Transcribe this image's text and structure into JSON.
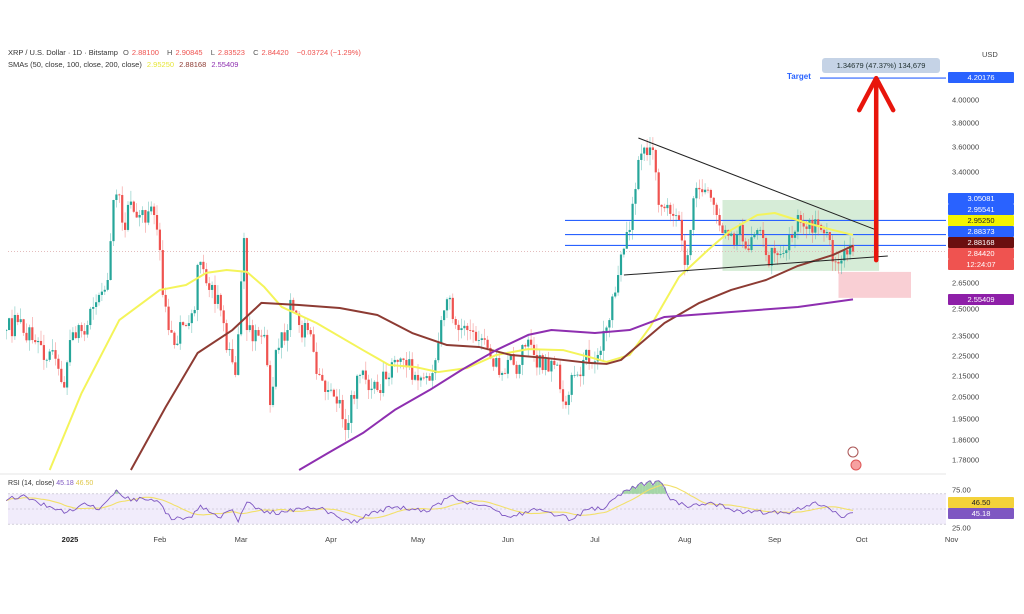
{
  "header": {
    "symbol_line": "XRP / U.S. Dollar · 1D · Bitstamp",
    "o_key": "O",
    "o": "2.88100",
    "h_key": "H",
    "h": "2.90845",
    "l_key": "L",
    "l": "2.83523",
    "c_key": "C",
    "c": "2.84420",
    "change": "−0.03724 (−1.29%)",
    "sma_label": "SMAs (50, close, 100, close, 200, close)",
    "sma50": "2.95250",
    "sma100": "2.88168",
    "sma200": "2.55409"
  },
  "rsi_header": {
    "label": "RSI (14, close)",
    "value": "45.18",
    "ma_value": "46.50"
  },
  "price_axis": {
    "currency": "USD",
    "ticks": [
      {
        "value": 4.0,
        "label": "4.00000"
      },
      {
        "value": 3.8,
        "label": "3.80000"
      },
      {
        "value": 3.6,
        "label": "3.60000"
      },
      {
        "value": 3.4,
        "label": "3.40000"
      },
      {
        "value": 2.65,
        "label": "2.65000"
      },
      {
        "value": 2.5,
        "label": "2.50000"
      },
      {
        "value": 2.35,
        "label": "2.35000"
      },
      {
        "value": 2.25,
        "label": "2.25000"
      },
      {
        "value": 2.15,
        "label": "2.15000"
      },
      {
        "value": 2.05,
        "label": "2.05000"
      },
      {
        "value": 1.95,
        "label": "1.95000"
      },
      {
        "value": 1.86,
        "label": "1.86000"
      },
      {
        "value": 1.78,
        "label": "1.78000"
      }
    ],
    "scale": "log",
    "badges": {
      "target": "4.20176",
      "level1": "3.05081",
      "level2": "2.95541",
      "sma50": "2.95250",
      "level3": "2.88373",
      "sma100": "2.88168",
      "last": "2.84420",
      "countdown": "12:24:07",
      "sma200": "2.55409"
    }
  },
  "rsi_axis": {
    "ticks": [
      {
        "value": 75,
        "label": "75.00"
      },
      {
        "value": 25,
        "label": "25.00"
      }
    ],
    "badges": {
      "ma": "46.50",
      "rsi": "45.18"
    }
  },
  "time_axis": [
    {
      "date": "2025-01-01",
      "label": "2025"
    },
    {
      "date": "2025-02-01",
      "label": "Feb"
    },
    {
      "date": "2025-03-01",
      "label": "Mar"
    },
    {
      "date": "2025-04-01",
      "label": "Apr"
    },
    {
      "date": "2025-05-01",
      "label": "May"
    },
    {
      "date": "2025-06-01",
      "label": "Jun"
    },
    {
      "date": "2025-07-01",
      "label": "Jul"
    },
    {
      "date": "2025-08-01",
      "label": "Aug"
    },
    {
      "date": "2025-09-01",
      "label": "Sep"
    },
    {
      "date": "2025-10-01",
      "label": "Oct"
    },
    {
      "date": "2025-11-01",
      "label": "Nov"
    }
  ],
  "drawings": {
    "target_label": "Target",
    "target_price": 4.20176,
    "measure_text": "1.34679 (47.37%) 134,679",
    "horizontal_levels": [
      3.05081,
      2.95541,
      2.88373
    ],
    "triangle_upper": [
      [
        "2025-07-16",
        3.672
      ],
      [
        "2025-10-06",
        2.986
      ]
    ],
    "triangle_lower": [
      [
        "2025-07-11",
        2.698
      ],
      [
        "2025-10-10",
        2.816
      ]
    ],
    "green_zone": {
      "from": "2025-08-14",
      "to": "2025-10-07",
      "top": 3.194,
      "bottom": 2.723
    },
    "red_zone": {
      "from": "2025-09-23",
      "to": "2025-10-18",
      "top": 2.717,
      "bottom": 2.563
    },
    "arrow": {
      "date": "2025-10-06",
      "from": 2.79,
      "to": 4.22
    }
  },
  "colors": {
    "up": "#26a69a",
    "down": "#ef5350",
    "sma50": "#f4f45a",
    "sma100": "#8d3b33",
    "sma200": "#8e2fb0",
    "level": "#2962ff",
    "arrow": "#e8150c",
    "rsi": "#7e57c2",
    "rsi_ma": "#f2e06a",
    "green_zone": "#c8e6c9",
    "red_zone": "#f8c7cc"
  },
  "chart_data": {
    "type": "candlestick",
    "title": "XRP / U.S. Dollar · 1D · Bitstamp",
    "y_scale": "log",
    "ylim": [
      1.74,
      4.4
    ],
    "xlim": [
      "2024-12-10",
      "2025-11-10"
    ],
    "price_path": [
      [
        "2024-12-10",
        2.384
      ],
      [
        "2024-12-14",
        2.427
      ],
      [
        "2024-12-19",
        2.331
      ],
      [
        "2024-12-23",
        2.229
      ],
      [
        "2024-12-26",
        2.279
      ],
      [
        "2024-12-30",
        2.095
      ],
      [
        "2025-01-01",
        2.331
      ],
      [
        "2025-01-04",
        2.411
      ],
      [
        "2025-01-07",
        2.411
      ],
      [
        "2025-01-11",
        2.58
      ],
      [
        "2025-01-14",
        2.668
      ],
      [
        "2025-01-16",
        3.194
      ],
      [
        "2025-01-18",
        3.23
      ],
      [
        "2025-01-20",
        2.986
      ],
      [
        "2025-01-21",
        3.159
      ],
      [
        "2025-01-25",
        3.088
      ],
      [
        "2025-01-30",
        3.088
      ],
      [
        "2025-02-01",
        2.854
      ],
      [
        "2025-02-02",
        2.58
      ],
      [
        "2025-02-04",
        2.384
      ],
      [
        "2025-02-06",
        2.305
      ],
      [
        "2025-02-09",
        2.411
      ],
      [
        "2025-02-13",
        2.494
      ],
      [
        "2025-02-14",
        2.76
      ],
      [
        "2025-02-18",
        2.609
      ],
      [
        "2025-02-21",
        2.58
      ],
      [
        "2025-02-24",
        2.279
      ],
      [
        "2025-02-27",
        2.155
      ],
      [
        "2025-03-02",
        2.932
      ],
      [
        "2025-03-03",
        2.384
      ],
      [
        "2025-03-06",
        2.384
      ],
      [
        "2025-03-09",
        2.358
      ],
      [
        "2025-03-11",
        2.014
      ],
      [
        "2025-03-13",
        2.279
      ],
      [
        "2025-03-17",
        2.384
      ],
      [
        "2025-03-18",
        2.551
      ],
      [
        "2025-03-21",
        2.411
      ],
      [
        "2025-03-24",
        2.384
      ],
      [
        "2025-03-28",
        2.155
      ],
      [
        "2025-03-31",
        2.083
      ],
      [
        "2025-04-04",
        2.037
      ],
      [
        "2025-04-06",
        1.904
      ],
      [
        "2025-04-08",
        2.06
      ],
      [
        "2025-04-11",
        2.155
      ],
      [
        "2025-04-14",
        2.083
      ],
      [
        "2025-04-17",
        2.083
      ],
      [
        "2025-04-23",
        2.229
      ],
      [
        "2025-04-26",
        2.229
      ],
      [
        "2025-04-30",
        2.155
      ],
      [
        "2025-05-03",
        2.14
      ],
      [
        "2025-05-06",
        2.164
      ],
      [
        "2025-05-09",
        2.438
      ],
      [
        "2025-05-12",
        2.563
      ],
      [
        "2025-05-15",
        2.384
      ],
      [
        "2025-05-18",
        2.384
      ],
      [
        "2025-05-22",
        2.331
      ],
      [
        "2025-05-25",
        2.29
      ],
      [
        "2025-05-29",
        2.155
      ],
      [
        "2025-06-01",
        2.229
      ],
      [
        "2025-06-05",
        2.204
      ],
      [
        "2025-06-06",
        2.305
      ],
      [
        "2025-06-10",
        2.254
      ],
      [
        "2025-06-13",
        2.179
      ],
      [
        "2025-06-17",
        2.204
      ],
      [
        "2025-06-21",
        2.014
      ],
      [
        "2025-06-24",
        2.155
      ],
      [
        "2025-06-27",
        2.229
      ],
      [
        "2025-07-02",
        2.254
      ],
      [
        "2025-07-06",
        2.438
      ],
      [
        "2025-07-09",
        2.698
      ],
      [
        "2025-07-13",
        2.986
      ],
      [
        "2025-07-16",
        3.495
      ],
      [
        "2025-07-19",
        3.534
      ],
      [
        "2025-07-21",
        3.574
      ],
      [
        "2025-07-23",
        3.159
      ],
      [
        "2025-07-26",
        3.159
      ],
      [
        "2025-07-30",
        3.054
      ],
      [
        "2025-08-01",
        2.76
      ],
      [
        "2025-08-03",
        2.986
      ],
      [
        "2025-08-05",
        3.282
      ],
      [
        "2025-08-09",
        3.267
      ],
      [
        "2025-08-12",
        3.088
      ],
      [
        "2025-08-15",
        2.986
      ],
      [
        "2025-08-18",
        2.887
      ],
      [
        "2025-08-20",
        3.02
      ],
      [
        "2025-08-23",
        2.854
      ],
      [
        "2025-08-27",
        2.986
      ],
      [
        "2025-08-29",
        2.822
      ],
      [
        "2025-09-02",
        2.822
      ],
      [
        "2025-09-06",
        2.952
      ],
      [
        "2025-09-09",
        3.088
      ],
      [
        "2025-09-13",
        3.054
      ],
      [
        "2025-09-16",
        3.02
      ],
      [
        "2025-09-20",
        2.919
      ],
      [
        "2025-09-22",
        2.778
      ],
      [
        "2025-09-25",
        2.854
      ],
      [
        "2025-09-27",
        2.887
      ],
      [
        "2025-09-28",
        2.8442
      ]
    ],
    "series": [
      {
        "name": "SMA 50",
        "points": [
          [
            "2024-12-25",
            1.74
          ],
          [
            "2025-01-05",
            2.069
          ],
          [
            "2025-01-18",
            2.438
          ],
          [
            "2025-02-01",
            2.609
          ],
          [
            "2025-02-10",
            2.638
          ],
          [
            "2025-02-17",
            2.711
          ],
          [
            "2025-02-24",
            2.729
          ],
          [
            "2025-03-03",
            2.717
          ],
          [
            "2025-03-09",
            2.626
          ],
          [
            "2025-03-15",
            2.511
          ],
          [
            "2025-03-27",
            2.422
          ],
          [
            "2025-04-12",
            2.279
          ],
          [
            "2025-04-21",
            2.204
          ],
          [
            "2025-04-30",
            2.194
          ],
          [
            "2025-05-08",
            2.169
          ],
          [
            "2025-05-18",
            2.189
          ],
          [
            "2025-05-28",
            2.254
          ],
          [
            "2025-06-08",
            2.284
          ],
          [
            "2025-06-20",
            2.279
          ],
          [
            "2025-06-29",
            2.244
          ],
          [
            "2025-07-05",
            2.219
          ],
          [
            "2025-07-13",
            2.254
          ],
          [
            "2025-07-20",
            2.4
          ],
          [
            "2025-07-30",
            2.686
          ],
          [
            "2025-08-09",
            2.854
          ],
          [
            "2025-08-17",
            2.986
          ],
          [
            "2025-08-26",
            3.088
          ],
          [
            "2025-09-01",
            3.102
          ],
          [
            "2025-09-12",
            3.033
          ],
          [
            "2025-09-21",
            2.986
          ],
          [
            "2025-09-28",
            2.9525
          ]
        ]
      },
      {
        "name": "SMA 100",
        "points": [
          [
            "2025-01-22",
            1.74
          ],
          [
            "2025-02-03",
            2.005
          ],
          [
            "2025-02-14",
            2.264
          ],
          [
            "2025-02-26",
            2.384
          ],
          [
            "2025-03-08",
            2.534
          ],
          [
            "2025-03-21",
            2.522
          ],
          [
            "2025-04-04",
            2.505
          ],
          [
            "2025-04-17",
            2.466
          ],
          [
            "2025-04-29",
            2.368
          ],
          [
            "2025-05-11",
            2.305
          ],
          [
            "2025-05-22",
            2.295
          ],
          [
            "2025-06-02",
            2.254
          ],
          [
            "2025-06-14",
            2.239
          ],
          [
            "2025-06-29",
            2.214
          ],
          [
            "2025-07-05",
            2.209
          ],
          [
            "2025-07-10",
            2.229
          ],
          [
            "2025-07-25",
            2.422
          ],
          [
            "2025-08-06",
            2.534
          ],
          [
            "2025-08-17",
            2.609
          ],
          [
            "2025-08-29",
            2.668
          ],
          [
            "2025-09-09",
            2.754
          ],
          [
            "2025-09-21",
            2.822
          ],
          [
            "2025-09-28",
            2.88168
          ]
        ]
      },
      {
        "name": "SMA 200",
        "points": [
          [
            "2025-03-21",
            1.74
          ],
          [
            "2025-03-31",
            1.808
          ],
          [
            "2025-04-12",
            1.891
          ],
          [
            "2025-04-23",
            1.992
          ],
          [
            "2025-05-05",
            2.083
          ],
          [
            "2025-05-16",
            2.179
          ],
          [
            "2025-05-28",
            2.279
          ],
          [
            "2025-06-08",
            2.358
          ],
          [
            "2025-06-16",
            2.384
          ],
          [
            "2025-07-01",
            2.368
          ],
          [
            "2025-07-13",
            2.384
          ],
          [
            "2025-07-25",
            2.455
          ],
          [
            "2025-08-17",
            2.483
          ],
          [
            "2025-09-09",
            2.511
          ],
          [
            "2025-09-28",
            2.55409
          ]
        ]
      }
    ],
    "rsi": {
      "ylim": [
        25,
        75
      ],
      "points": [
        [
          "2024-12-10",
          64
        ],
        [
          "2024-12-17",
          66
        ],
        [
          "2024-12-21",
          58
        ],
        [
          "2024-12-31",
          46
        ],
        [
          "2025-01-06",
          58
        ],
        [
          "2025-01-11",
          49
        ],
        [
          "2025-01-17",
          75
        ],
        [
          "2025-01-20",
          64
        ],
        [
          "2025-01-27",
          62
        ],
        [
          "2025-02-01",
          58
        ],
        [
          "2025-02-05",
          36
        ],
        [
          "2025-02-12",
          39
        ],
        [
          "2025-02-15",
          55
        ],
        [
          "2025-02-21",
          39
        ],
        [
          "2025-02-26",
          49
        ],
        [
          "2025-02-28",
          33
        ],
        [
          "2025-03-03",
          59
        ],
        [
          "2025-03-09",
          45
        ],
        [
          "2025-03-16",
          46
        ],
        [
          "2025-03-23",
          51
        ],
        [
          "2025-03-30",
          49
        ],
        [
          "2025-04-04",
          38
        ],
        [
          "2025-04-10",
          32
        ],
        [
          "2025-04-15",
          46
        ],
        [
          "2025-04-24",
          53
        ],
        [
          "2025-05-04",
          46
        ],
        [
          "2025-05-13",
          68
        ],
        [
          "2025-05-17",
          59
        ],
        [
          "2025-05-24",
          55
        ],
        [
          "2025-06-02",
          39
        ],
        [
          "2025-06-09",
          49
        ],
        [
          "2025-06-16",
          45
        ],
        [
          "2025-06-23",
          36
        ],
        [
          "2025-06-28",
          49
        ],
        [
          "2025-07-05",
          53
        ],
        [
          "2025-07-12",
          75
        ],
        [
          "2025-07-19",
          85
        ],
        [
          "2025-07-24",
          84
        ],
        [
          "2025-07-27",
          62
        ],
        [
          "2025-08-03",
          53
        ],
        [
          "2025-08-10",
          59
        ],
        [
          "2025-08-17",
          49
        ],
        [
          "2025-08-24",
          45
        ],
        [
          "2025-08-31",
          46
        ],
        [
          "2025-09-05",
          45
        ],
        [
          "2025-09-14",
          58
        ],
        [
          "2025-09-19",
          53
        ],
        [
          "2025-09-25",
          39
        ],
        [
          "2025-09-28",
          45.18
        ]
      ]
    }
  }
}
